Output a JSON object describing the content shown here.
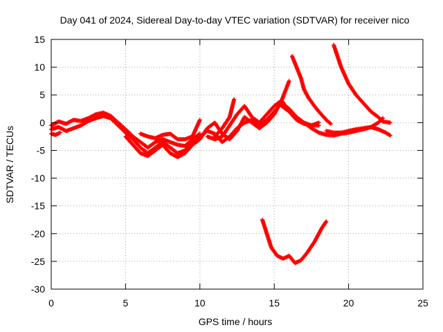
{
  "chart_data": {
    "type": "scatter",
    "title": "Day 041 of 2024, Sidereal Day-to-day VTEC variation (SDTVAR) for receiver nico",
    "xlabel": "GPS time / hours",
    "ylabel": "SDTVAR / TECUs",
    "xlim": [
      0,
      25
    ],
    "ylim": [
      -30,
      15
    ],
    "xticks": [
      0,
      5,
      10,
      15,
      20,
      25
    ],
    "xtick_labels": [
      "0",
      "5",
      "10",
      "15",
      "20",
      "25"
    ],
    "yticks": [
      -30,
      -25,
      -20,
      -15,
      -10,
      -5,
      0,
      5,
      10,
      15
    ],
    "ytick_labels": [
      "-30",
      "-25",
      "-20",
      "-15",
      "-10",
      "-5",
      "0",
      "5",
      "10",
      "15"
    ],
    "grid": true,
    "marker": "+",
    "color": "#ff0000",
    "series": [
      {
        "name": "s1",
        "points": [
          [
            0,
            -0.5
          ],
          [
            0.5,
            0.2
          ],
          [
            1,
            -0.2
          ],
          [
            1.5,
            0.5
          ],
          [
            2,
            0.3
          ],
          [
            2.5,
            0.8
          ],
          [
            3,
            1.5
          ],
          [
            3.5,
            1.8
          ],
          [
            4,
            1.2
          ],
          [
            4.5,
            0
          ],
          [
            5,
            -1.2
          ],
          [
            5.5,
            -2.5
          ],
          [
            6,
            -3.5
          ],
          [
            6.5,
            -4.5
          ],
          [
            7,
            -3.5
          ],
          [
            7.5,
            -3
          ],
          [
            8,
            -3.5
          ],
          [
            8.5,
            -4
          ],
          [
            9,
            -4.2
          ],
          [
            9.5,
            -3
          ],
          [
            10,
            -2
          ]
        ]
      },
      {
        "name": "s2",
        "points": [
          [
            0,
            -1.2
          ],
          [
            0.5,
            -0.8
          ],
          [
            1,
            -1.5
          ],
          [
            1.5,
            -1
          ],
          [
            2,
            -0.5
          ],
          [
            2.5,
            0.3
          ],
          [
            3,
            0.8
          ],
          [
            3.5,
            1.2
          ],
          [
            4,
            0.8
          ],
          [
            4.5,
            -0.5
          ],
          [
            5,
            -1.8
          ],
          [
            5.5,
            -3
          ],
          [
            6,
            -4.5
          ],
          [
            6.5,
            -5.5
          ],
          [
            7,
            -4.5
          ],
          [
            7.5,
            -3.5
          ],
          [
            8,
            -4.5
          ],
          [
            8.5,
            -5.5
          ],
          [
            9,
            -5
          ],
          [
            9.5,
            -3.5
          ],
          [
            10,
            -2.5
          ],
          [
            10.5,
            -1.5
          ],
          [
            11,
            -2
          ],
          [
            11.5,
            -3.5
          ],
          [
            12,
            -2.5
          ],
          [
            12.5,
            -1
          ],
          [
            13,
            0
          ],
          [
            13.5,
            0.5
          ],
          [
            14,
            -0.5
          ],
          [
            14.5,
            0.5
          ],
          [
            15,
            2
          ],
          [
            15.5,
            3.5
          ],
          [
            16,
            2.5
          ],
          [
            16.5,
            1
          ],
          [
            17,
            0
          ],
          [
            17.5,
            -0.5
          ],
          [
            18,
            0
          ]
        ]
      },
      {
        "name": "s3",
        "points": [
          [
            0,
            -2
          ],
          [
            0.3,
            -2.2
          ],
          [
            0.6,
            -1.8
          ]
        ]
      },
      {
        "name": "s4",
        "points": [
          [
            5,
            -2.5
          ],
          [
            5.5,
            -4
          ],
          [
            6,
            -5.5
          ],
          [
            6.5,
            -6
          ],
          [
            7,
            -5
          ],
          [
            7.5,
            -4
          ],
          [
            8,
            -5.5
          ],
          [
            8.5,
            -6.2
          ],
          [
            9,
            -5.5
          ],
          [
            9.5,
            -4
          ]
        ]
      },
      {
        "name": "s5",
        "points": [
          [
            6,
            -2
          ],
          [
            6.5,
            -2.5
          ],
          [
            7,
            -2.8
          ],
          [
            7.5,
            -2.2
          ],
          [
            8,
            -2
          ],
          [
            8.5,
            -3
          ],
          [
            9,
            -3
          ],
          [
            9.5,
            -2.5
          ],
          [
            10,
            0.5
          ]
        ]
      },
      {
        "name": "s6",
        "points": [
          [
            9.5,
            -4
          ],
          [
            10,
            -3
          ],
          [
            10.5,
            -1
          ],
          [
            11,
            0
          ],
          [
            11.5,
            -2
          ],
          [
            12,
            -3
          ],
          [
            12.5,
            -1.5
          ],
          [
            13,
            1
          ],
          [
            13.5,
            0
          ],
          [
            14,
            -1
          ],
          [
            14.5,
            0
          ],
          [
            15,
            1.5
          ],
          [
            15.5,
            4
          ],
          [
            16,
            7.5
          ]
        ]
      },
      {
        "name": "s7",
        "points": [
          [
            10.5,
            -2.5
          ],
          [
            11,
            -3
          ],
          [
            11.5,
            -2.5
          ],
          [
            12,
            -0.5
          ],
          [
            12.5,
            1.5
          ],
          [
            13,
            3
          ],
          [
            13.5,
            1
          ],
          [
            14,
            0
          ],
          [
            14.5,
            1.5
          ],
          [
            15,
            3
          ],
          [
            15.5,
            4
          ],
          [
            16,
            2
          ],
          [
            16.5,
            0.5
          ],
          [
            17,
            -0.2
          ],
          [
            17.5,
            -0.5
          ],
          [
            18,
            -0.5
          ]
        ]
      },
      {
        "name": "s8",
        "points": [
          [
            11,
            -2.5
          ],
          [
            11.5,
            -1
          ],
          [
            12,
            1
          ],
          [
            12.3,
            4.2
          ]
        ]
      },
      {
        "name": "s9",
        "points": [
          [
            15.5,
            3
          ],
          [
            16,
            2
          ],
          [
            16.5,
            1
          ],
          [
            17,
            0
          ],
          [
            17.5,
            -1
          ],
          [
            18,
            -1.8
          ],
          [
            18.5,
            -2.2
          ],
          [
            19,
            -2.3
          ],
          [
            19.5,
            -2
          ],
          [
            20,
            -1.8
          ],
          [
            20.5,
            -1.5
          ],
          [
            21,
            -1.2
          ],
          [
            21.5,
            -0.8
          ],
          [
            22,
            0
          ],
          [
            22.3,
            0.8
          ]
        ]
      },
      {
        "name": "s10",
        "points": [
          [
            16.2,
            12
          ],
          [
            16.5,
            10
          ],
          [
            16.8,
            8
          ],
          [
            17,
            6
          ],
          [
            17.3,
            4.5
          ],
          [
            17.7,
            3
          ],
          [
            18,
            2
          ],
          [
            18.5,
            0.5
          ],
          [
            18.8,
            -0.2
          ]
        ]
      },
      {
        "name": "s11",
        "points": [
          [
            18.5,
            -1.5
          ],
          [
            19,
            -1.8
          ],
          [
            19.5,
            -1.8
          ],
          [
            20,
            -1.5
          ],
          [
            20.5,
            -1.2
          ],
          [
            21,
            -1
          ],
          [
            21.5,
            -0.8
          ],
          [
            22,
            -1.2
          ],
          [
            22.5,
            -1.8
          ],
          [
            22.8,
            -2.3
          ]
        ]
      },
      {
        "name": "s12",
        "points": [
          [
            19,
            14
          ],
          [
            19.5,
            10
          ],
          [
            20,
            7
          ],
          [
            20.5,
            5
          ],
          [
            21,
            3.5
          ],
          [
            21.5,
            2
          ],
          [
            22,
            1
          ],
          [
            22.3,
            0.2
          ],
          [
            22.8,
            0
          ]
        ]
      },
      {
        "name": "s13",
        "points": [
          [
            14.2,
            -17.5
          ],
          [
            14.5,
            -20
          ],
          [
            14.8,
            -22.5
          ],
          [
            15.2,
            -24
          ],
          [
            15.6,
            -24.5
          ],
          [
            16,
            -24
          ],
          [
            16.4,
            -25.3
          ],
          [
            16.8,
            -24.8
          ],
          [
            17.2,
            -23.5
          ],
          [
            17.7,
            -21.5
          ],
          [
            18.2,
            -19
          ],
          [
            18.5,
            -17.8
          ]
        ]
      }
    ]
  }
}
